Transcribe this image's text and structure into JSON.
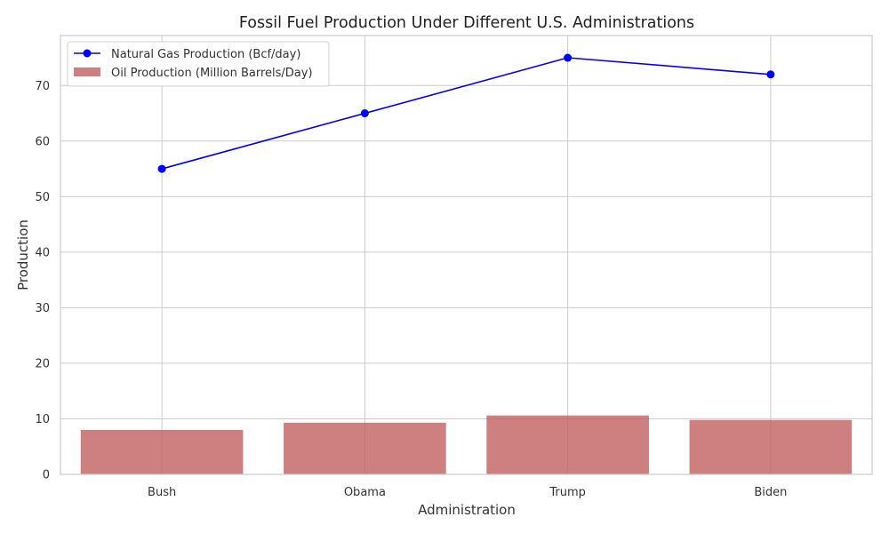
{
  "chart_data": {
    "type": "bar",
    "title": "Fossil Fuel Production Under Different U.S. Administrations",
    "xlabel": "Administration",
    "ylabel": "Production",
    "categories": [
      "Bush",
      "Obama",
      "Trump",
      "Biden"
    ],
    "ylim": [
      0,
      79
    ],
    "yticks": [
      0,
      10,
      20,
      30,
      40,
      50,
      60,
      70
    ],
    "grid": true,
    "legend_position": "top-left",
    "series": [
      {
        "name": "Natural Gas Production (Bcf/day)",
        "type": "line",
        "color": "#0000ff",
        "marker": "circle",
        "values": [
          55,
          65,
          75,
          72
        ]
      },
      {
        "name": "Oil Production (Million Barrels/Day)",
        "type": "bar",
        "color": "#c0605f",
        "values": [
          8.0,
          9.3,
          10.6,
          9.8
        ]
      }
    ]
  }
}
